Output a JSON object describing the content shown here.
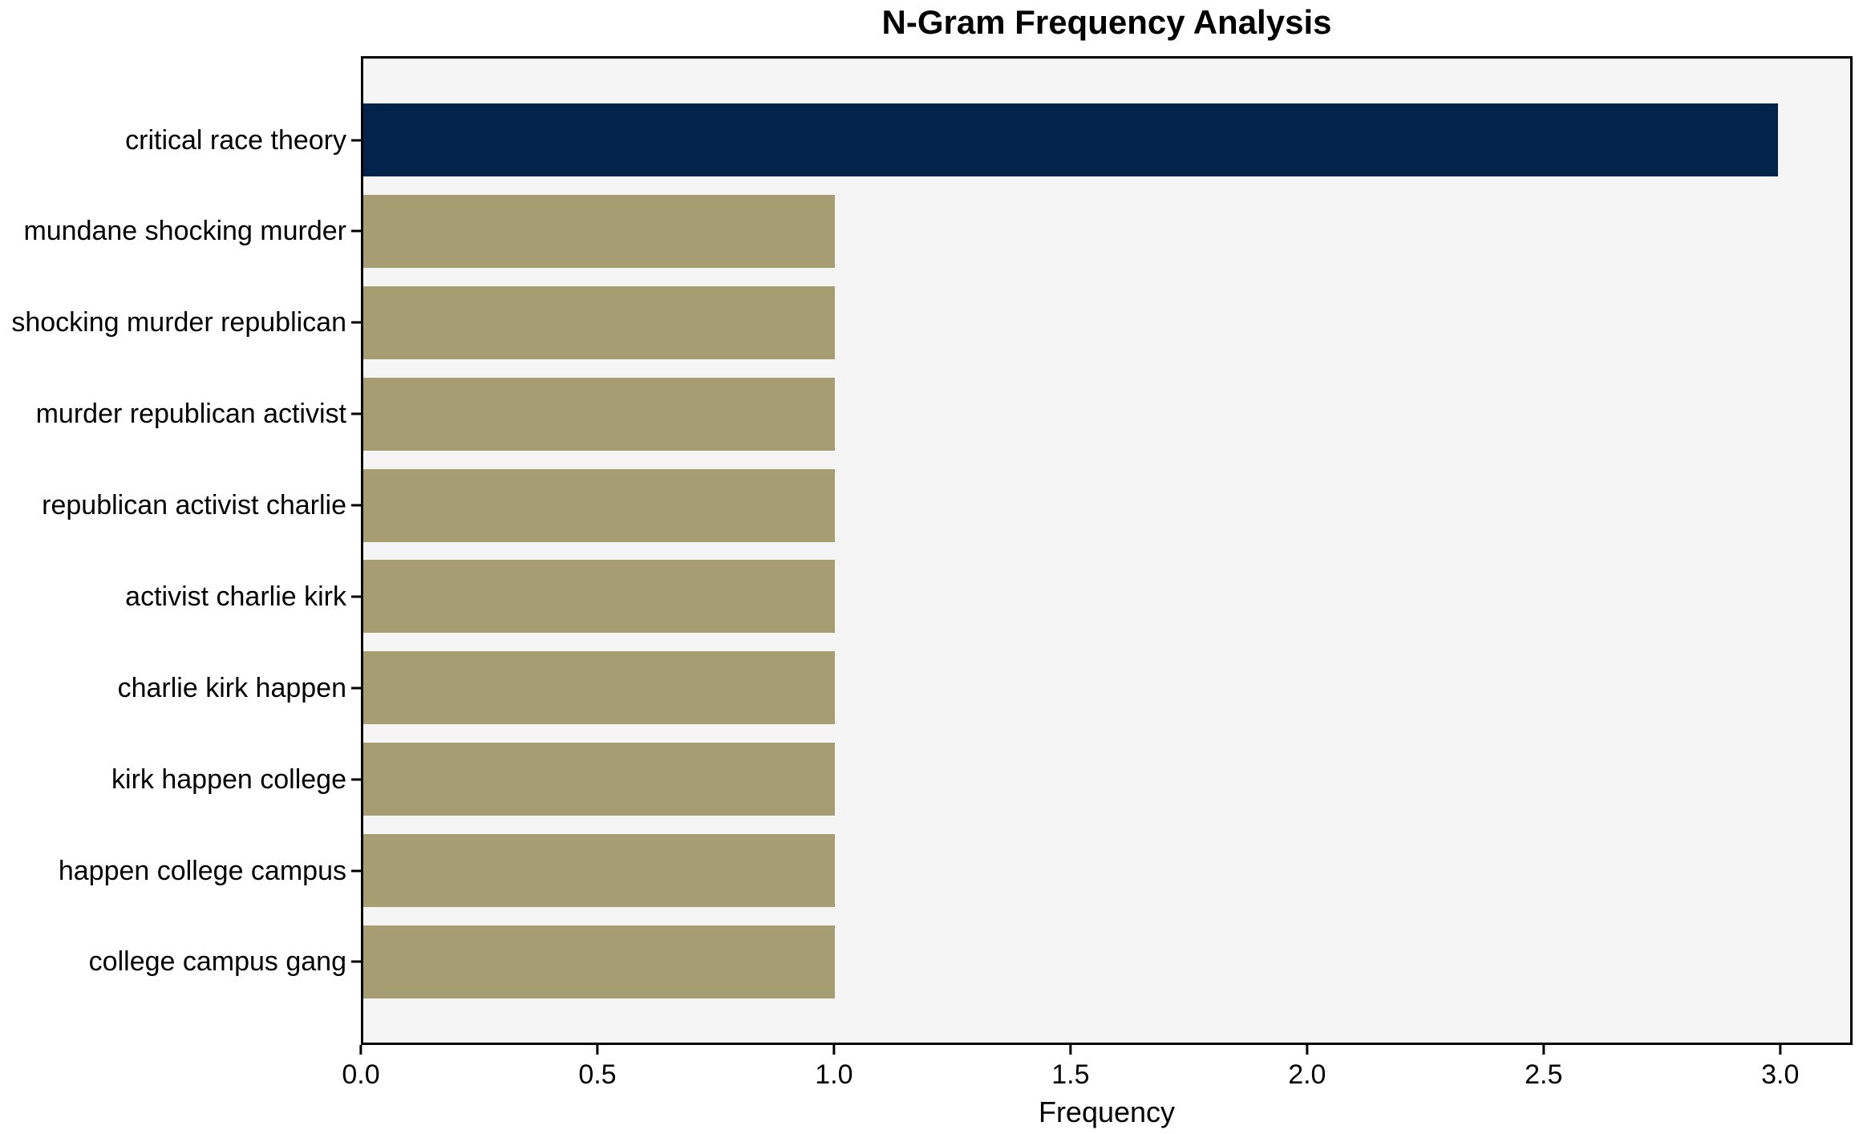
{
  "chart_data": {
    "type": "bar",
    "orientation": "horizontal",
    "title": "N-Gram Frequency Analysis",
    "xlabel": "Frequency",
    "ylabel": "",
    "categories": [
      "critical race theory",
      "mundane shocking murder",
      "shocking murder republican",
      "murder republican activist",
      "republican activist charlie",
      "activist charlie kirk",
      "charlie kirk happen",
      "kirk happen college",
      "happen college campus",
      "college campus gang"
    ],
    "values": [
      3,
      1,
      1,
      1,
      1,
      1,
      1,
      1,
      1,
      1
    ],
    "bar_colors": [
      "#02234a",
      "#a69d72",
      "#a69d72",
      "#a69d72",
      "#a69d72",
      "#a69d72",
      "#a69d72",
      "#a69d72",
      "#a69d72",
      "#a69d72"
    ],
    "highlight_color": "#02234a",
    "default_color": "#a69d72",
    "xlim": [
      0,
      3.153
    ],
    "xticks": [
      0.0,
      0.5,
      1.0,
      1.5,
      2.0,
      2.5,
      3.0
    ],
    "xtick_labels": [
      "0.0",
      "0.5",
      "1.0",
      "1.5",
      "2.0",
      "2.5",
      "3.0"
    ],
    "grid": false,
    "legend": "none",
    "plot_background": "#f5f5f6",
    "figure_background": "#ffffff",
    "spine_color": "#000000"
  }
}
